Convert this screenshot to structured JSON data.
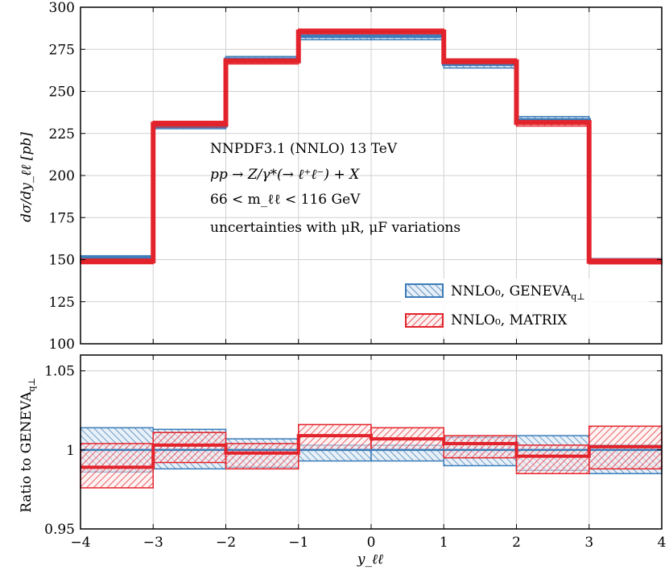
{
  "chart_data": [
    {
      "type": "line",
      "panel": "main",
      "ylabel": "dσ/dy_ℓℓ [pb]",
      "ylim": [
        100,
        300
      ],
      "xlim": [
        -4,
        4
      ],
      "yticks": [
        "100",
        "125",
        "150",
        "175",
        "200",
        "225",
        "250",
        "275",
        "300"
      ],
      "grid": true,
      "bin_edges": [
        -4,
        -3,
        -2,
        -1,
        0,
        1,
        2,
        3,
        4
      ],
      "series": [
        {
          "name": "NNLO₀, GENEVA",
          "name_sub": "q⊥",
          "color": "#3b7bb8",
          "central": [
            150.9,
            229.6,
            269.1,
            282.8,
            282.8,
            266.2,
            233.0,
            149.3
          ],
          "lower": [
            149.4,
            227.8,
            267.4,
            280.7,
            280.7,
            263.9,
            230.8,
            147.8
          ],
          "upper": [
            152.3,
            231.2,
            270.7,
            284.8,
            284.8,
            268.2,
            235.0,
            150.6
          ]
        },
        {
          "name": "NNLO₀, MATRIX",
          "color": "#e3232b",
          "central": [
            149.2,
            230.5,
            268.1,
            285.3,
            285.3,
            267.6,
            231.5,
            149.0
          ],
          "lower": [
            147.6,
            228.6,
            266.3,
            283.1,
            283.1,
            265.6,
            229.4,
            147.5
          ],
          "upper": [
            150.6,
            232.2,
            269.6,
            287.0,
            287.0,
            269.3,
            233.2,
            150.4
          ]
        }
      ],
      "annotations": [
        "NNPDF3.1 (NNLO) 13 TeV",
        "pp → Z/γ*(→ ℓ⁺ℓ⁻) + X",
        "66 < m_ℓℓ < 116 GeV",
        "uncertainties with μR, μF variations"
      ],
      "legend_position": "bottom-right"
    },
    {
      "type": "line",
      "panel": "ratio",
      "ylabel": "Ratio to GENEVA",
      "ylabel_sub": "q⊥",
      "xlabel": "y_ℓℓ",
      "ylim": [
        0.95,
        1.06
      ],
      "xlim": [
        -4,
        4
      ],
      "yticks": [
        "0.95",
        "1",
        "1.05"
      ],
      "xticks": [
        "−4",
        "−3",
        "−2",
        "−1",
        "0",
        "1",
        "2",
        "3",
        "4"
      ],
      "grid": true,
      "bin_edges": [
        -4,
        -3,
        -2,
        -1,
        0,
        1,
        2,
        3,
        4
      ],
      "series": [
        {
          "name": "NNLO₀, GENEVA",
          "color": "#3b7bb8",
          "central": [
            1.0,
            1.0,
            1.0,
            1.0,
            1.0,
            1.0,
            1.0,
            1.0
          ],
          "lower": [
            0.986,
            0.988,
            0.989,
            0.993,
            0.993,
            0.99,
            0.987,
            0.985
          ],
          "upper": [
            1.014,
            1.013,
            1.007,
            1.003,
            1.003,
            1.008,
            1.009,
            1.003
          ]
        },
        {
          "name": "NNLO₀, MATRIX",
          "color": "#e3232b",
          "central": [
            0.989,
            1.003,
            0.998,
            1.009,
            1.007,
            1.004,
            0.996,
            1.002
          ],
          "lower": [
            0.976,
            0.992,
            0.988,
            1.0,
            1.0,
            0.995,
            0.985,
            0.988
          ],
          "upper": [
            1.004,
            1.011,
            1.004,
            1.016,
            1.014,
            1.009,
            1.003,
            1.015
          ]
        }
      ]
    }
  ]
}
